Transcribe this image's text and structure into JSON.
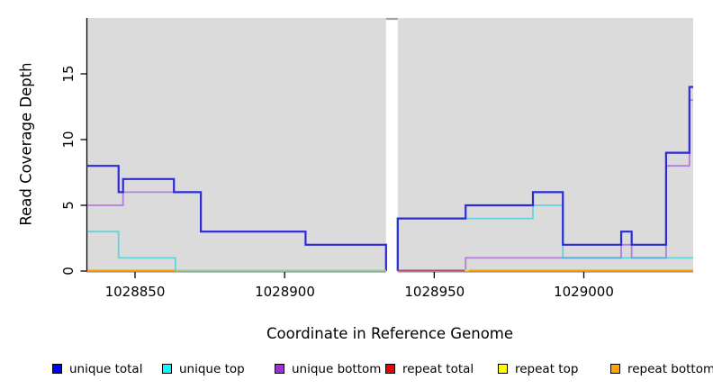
{
  "figure": {
    "background": "#ffffff",
    "panel_color": "#DBDBDB",
    "gap_band_color": "#ffffff",
    "gap_top_tick_color": "#A3A3A3",
    "axis_color": "#000000"
  },
  "chart_data": {
    "type": "line",
    "subtype": "step-coverage-depth",
    "title": "",
    "xlabel": "Coordinate in Reference Genome",
    "ylabel": "Read Coverage Depth",
    "xlim": [
      1028834,
      1029036.6
    ],
    "ylim": [
      0,
      19.2
    ],
    "grid": false,
    "x_ticks": [
      1028850,
      1028900,
      1028950,
      1029000
    ],
    "x_tick_labels": [
      "1028850",
      "1028900",
      "1028950",
      "1029000"
    ],
    "y_ticks": [
      0,
      5,
      10,
      15
    ],
    "y_tick_labels": [
      "0",
      "5",
      "10",
      "15"
    ],
    "gap": {
      "from": 1028933.9,
      "to": 1028937.8,
      "note": "white no-data band across plot"
    },
    "series": [
      {
        "name": "unique bottom",
        "line_color": "rgba(153,68,221,0.62)",
        "line_width": 1.8,
        "steps_left": [
          [
            1028834,
            5
          ],
          [
            1028846,
            6
          ],
          [
            1028872,
            3
          ],
          [
            1028907,
            2
          ]
        ],
        "steps_right": [
          [
            1028937.8,
            0
          ],
          [
            1028960.5,
            1
          ],
          [
            1029012.5,
            2
          ],
          [
            1029016,
            1
          ],
          [
            1029027.5,
            8
          ],
          [
            1029035.3,
            13
          ]
        ],
        "drop_to_zero_at_gap": true
      },
      {
        "name": "unique top",
        "line_color": "rgba(0,206,222,0.55)",
        "line_width": 1.8,
        "steps_left": [
          [
            1028834,
            3
          ],
          [
            1028844.5,
            1
          ],
          [
            1028863.5,
            0
          ]
        ],
        "steps_right": [
          [
            1028937.8,
            4
          ],
          [
            1028983,
            5
          ],
          [
            1028993,
            1
          ]
        ],
        "drop_to_zero_at_gap": true
      },
      {
        "name": "unique total",
        "line_color": "#2B2BD8",
        "line_width": 2.2,
        "steps_left": [
          [
            1028834,
            8
          ],
          [
            1028844.5,
            6
          ],
          [
            1028846,
            7
          ],
          [
            1028863,
            6
          ],
          [
            1028872,
            3
          ],
          [
            1028907,
            2
          ]
        ],
        "steps_right": [
          [
            1028937.8,
            4
          ],
          [
            1028960.5,
            5
          ],
          [
            1028983,
            6
          ],
          [
            1028993,
            2
          ],
          [
            1029012.5,
            3
          ],
          [
            1029016,
            2
          ],
          [
            1029027.5,
            9
          ],
          [
            1029035.3,
            14
          ]
        ],
        "drop_to_zero_at_gap": true
      },
      {
        "name": "repeat total",
        "line_color": "#CC0000",
        "line_width": 1.6,
        "steps_left": [
          [
            1028834,
            0
          ]
        ],
        "steps_right": [
          [
            1028937.8,
            0
          ]
        ],
        "drop_to_zero_at_gap": false
      },
      {
        "name": "repeat top",
        "line_color": "#E3DF34",
        "line_width": 1.6,
        "steps_left": [
          [
            1028834,
            0
          ]
        ],
        "steps_right": [
          [
            1028937.8,
            0
          ]
        ],
        "drop_to_zero_at_gap": false
      },
      {
        "name": "repeat bottom",
        "line_color": "#FF9E00",
        "line_width": 1.6,
        "steps_left": [
          [
            1028834,
            0
          ]
        ],
        "steps_right": [
          [
            1028937.8,
            0
          ]
        ],
        "drop_to_zero_at_gap": false
      }
    ],
    "zero_overlay_segments": [
      {
        "color": "#FF9E00",
        "from": 1028834,
        "to": 1028863.5
      },
      {
        "color": "#96CE96",
        "from": 1028863.5,
        "to": 1028933.9
      },
      {
        "color": "#AE4A72",
        "from": 1028937.8,
        "to": 1028960.2
      },
      {
        "color": "#E3DF34",
        "from": 1028960.2,
        "to": 1028961.6
      },
      {
        "color": "#FF9E00",
        "from": 1028961.6,
        "to": 1029036.6
      }
    ],
    "legend": [
      {
        "label": "unique total",
        "color": "#0000FF"
      },
      {
        "label": "unique top",
        "color": "#00FFFF"
      },
      {
        "label": "unique bottom",
        "color": "#9B30D9"
      },
      {
        "label": "repeat total",
        "color": "#EE0000"
      },
      {
        "label": "repeat top",
        "color": "#FFFF00"
      },
      {
        "label": "repeat bottom",
        "color": "#FFA500"
      }
    ],
    "legend_position": "bottom"
  }
}
